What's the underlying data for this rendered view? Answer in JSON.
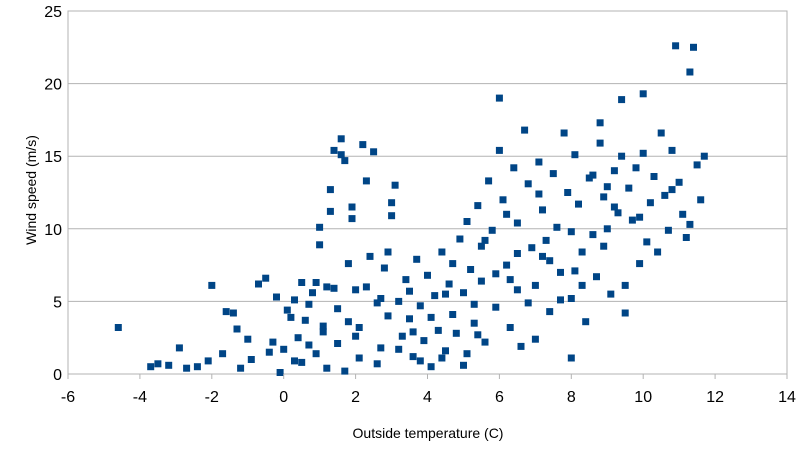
{
  "chart_data": {
    "type": "scatter",
    "xlabel": "Outside temperature (C)",
    "ylabel": "Wind speed (m/s)",
    "xlim": [
      -6,
      14
    ],
    "ylim": [
      0,
      25
    ],
    "x_ticks": [
      -6,
      -4,
      -2,
      0,
      2,
      4,
      6,
      8,
      10,
      12,
      14
    ],
    "y_ticks": [
      0,
      5,
      10,
      15,
      20,
      25
    ],
    "grid": "horizontal",
    "legend": "none",
    "marker_color": "#004586",
    "marker": "square",
    "series": [
      {
        "points": [
          [
            -4.6,
            3.2
          ],
          [
            -3.7,
            0.5
          ],
          [
            -3.5,
            0.7
          ],
          [
            -3.2,
            0.6
          ],
          [
            -2.9,
            1.8
          ],
          [
            -2.7,
            0.4
          ],
          [
            -2.4,
            0.5
          ],
          [
            -2.1,
            0.9
          ],
          [
            -2.0,
            6.1
          ],
          [
            -1.7,
            1.4
          ],
          [
            -1.6,
            4.3
          ],
          [
            -1.4,
            4.2
          ],
          [
            -1.3,
            3.1
          ],
          [
            -1.2,
            0.4
          ],
          [
            -1.0,
            2.4
          ],
          [
            -0.9,
            1.0
          ],
          [
            -0.7,
            6.2
          ],
          [
            -0.5,
            6.6
          ],
          [
            -0.4,
            1.5
          ],
          [
            -0.3,
            2.2
          ],
          [
            -0.2,
            5.3
          ],
          [
            -0.1,
            0.1
          ],
          [
            0.0,
            1.7
          ],
          [
            0.1,
            4.4
          ],
          [
            0.2,
            3.9
          ],
          [
            0.3,
            5.1
          ],
          [
            0.4,
            2.5
          ],
          [
            0.5,
            6.3
          ],
          [
            0.5,
            0.8
          ],
          [
            0.6,
            3.7
          ],
          [
            0.7,
            2.0
          ],
          [
            0.8,
            5.6
          ],
          [
            0.9,
            1.4
          ],
          [
            1.0,
            10.1
          ],
          [
            1.0,
            8.9
          ],
          [
            1.1,
            3.3
          ],
          [
            1.2,
            6.0
          ],
          [
            1.2,
            0.4
          ],
          [
            1.3,
            12.7
          ],
          [
            1.3,
            11.2
          ],
          [
            1.4,
            15.4
          ],
          [
            1.5,
            4.5
          ],
          [
            1.5,
            2.1
          ],
          [
            1.6,
            16.2
          ],
          [
            1.6,
            15.1
          ],
          [
            1.7,
            14.7
          ],
          [
            1.8,
            7.6
          ],
          [
            1.9,
            11.5
          ],
          [
            1.9,
            10.7
          ],
          [
            2.0,
            5.8
          ],
          [
            2.1,
            3.2
          ],
          [
            2.1,
            1.1
          ],
          [
            2.2,
            15.8
          ],
          [
            2.3,
            13.3
          ],
          [
            2.4,
            8.1
          ],
          [
            2.5,
            15.3
          ],
          [
            2.6,
            4.9
          ],
          [
            2.7,
            1.8
          ],
          [
            2.8,
            7.3
          ],
          [
            2.9,
            8.4
          ],
          [
            3.0,
            11.8
          ],
          [
            3.0,
            10.9
          ],
          [
            3.1,
            13.0
          ],
          [
            3.2,
            5.0
          ],
          [
            3.3,
            2.6
          ],
          [
            3.4,
            6.5
          ],
          [
            3.5,
            3.8
          ],
          [
            3.6,
            1.2
          ],
          [
            3.7,
            7.9
          ],
          [
            3.8,
            4.7
          ],
          [
            3.9,
            2.3
          ],
          [
            4.0,
            6.8
          ],
          [
            4.1,
            0.5
          ],
          [
            4.2,
            5.4
          ],
          [
            4.3,
            3.0
          ],
          [
            4.4,
            8.4
          ],
          [
            4.5,
            1.6
          ],
          [
            4.6,
            6.2
          ],
          [
            4.7,
            4.1
          ],
          [
            4.8,
            2.8
          ],
          [
            4.9,
            9.3
          ],
          [
            5.0,
            5.6
          ],
          [
            5.1,
            10.5
          ],
          [
            5.1,
            1.4
          ],
          [
            5.2,
            7.2
          ],
          [
            5.3,
            3.5
          ],
          [
            5.4,
            11.6
          ],
          [
            5.5,
            8.8
          ],
          [
            5.5,
            6.4
          ],
          [
            5.6,
            2.2
          ],
          [
            5.7,
            13.3
          ],
          [
            5.8,
            9.9
          ],
          [
            5.9,
            4.6
          ],
          [
            6.0,
            19.0
          ],
          [
            6.0,
            15.4
          ],
          [
            6.1,
            12.0
          ],
          [
            6.2,
            7.5
          ],
          [
            6.3,
            3.2
          ],
          [
            6.4,
            14.2
          ],
          [
            6.5,
            10.4
          ],
          [
            6.5,
            5.8
          ],
          [
            6.6,
            1.9
          ],
          [
            6.7,
            16.8
          ],
          [
            6.8,
            13.1
          ],
          [
            6.9,
            8.7
          ],
          [
            7.0,
            6.1
          ],
          [
            7.0,
            2.4
          ],
          [
            7.1,
            14.6
          ],
          [
            7.2,
            11.3
          ],
          [
            7.3,
            9.2
          ],
          [
            7.4,
            4.3
          ],
          [
            7.5,
            13.8
          ],
          [
            7.6,
            10.1
          ],
          [
            7.7,
            7.0
          ],
          [
            7.8,
            16.6
          ],
          [
            7.9,
            12.5
          ],
          [
            8.0,
            5.2
          ],
          [
            8.0,
            1.1
          ],
          [
            8.1,
            15.1
          ],
          [
            8.2,
            11.7
          ],
          [
            8.3,
            8.4
          ],
          [
            8.4,
            3.6
          ],
          [
            8.5,
            13.5
          ],
          [
            8.6,
            9.6
          ],
          [
            8.7,
            6.7
          ],
          [
            8.8,
            17.3
          ],
          [
            8.8,
            15.9
          ],
          [
            8.9,
            12.2
          ],
          [
            9.0,
            10.0
          ],
          [
            9.1,
            5.5
          ],
          [
            9.2,
            14.0
          ],
          [
            9.3,
            11.1
          ],
          [
            9.4,
            18.9
          ],
          [
            9.4,
            15.0
          ],
          [
            9.5,
            6.1
          ],
          [
            9.5,
            4.2
          ],
          [
            9.6,
            12.8
          ],
          [
            9.7,
            10.6
          ],
          [
            9.8,
            14.2
          ],
          [
            9.9,
            7.6
          ],
          [
            10.0,
            19.3
          ],
          [
            10.0,
            15.2
          ],
          [
            10.1,
            9.1
          ],
          [
            10.2,
            11.8
          ],
          [
            10.3,
            13.6
          ],
          [
            10.4,
            8.4
          ],
          [
            10.5,
            16.6
          ],
          [
            10.6,
            12.3
          ],
          [
            10.7,
            9.9
          ],
          [
            10.8,
            15.4
          ],
          [
            10.9,
            22.6
          ],
          [
            11.0,
            13.2
          ],
          [
            11.1,
            11.0
          ],
          [
            11.2,
            9.4
          ],
          [
            11.3,
            20.8
          ],
          [
            11.3,
            10.3
          ],
          [
            11.4,
            22.5
          ],
          [
            11.5,
            14.4
          ],
          [
            11.6,
            12.0
          ],
          [
            11.7,
            15.0
          ],
          [
            0.3,
            0.9
          ],
          [
            0.7,
            4.8
          ],
          [
            1.1,
            2.9
          ],
          [
            1.4,
            5.9
          ],
          [
            1.7,
            0.2
          ],
          [
            2.0,
            2.6
          ],
          [
            2.3,
            6.0
          ],
          [
            2.6,
            0.7
          ],
          [
            2.9,
            4.0
          ],
          [
            3.2,
            1.7
          ],
          [
            3.5,
            5.7
          ],
          [
            3.8,
            0.9
          ],
          [
            4.1,
            3.9
          ],
          [
            4.4,
            1.1
          ],
          [
            4.7,
            7.6
          ],
          [
            5.0,
            0.6
          ],
          [
            5.3,
            4.8
          ],
          [
            5.6,
            9.2
          ],
          [
            5.9,
            6.9
          ],
          [
            6.2,
            11.0
          ],
          [
            6.5,
            8.3
          ],
          [
            6.8,
            4.9
          ],
          [
            7.1,
            12.4
          ],
          [
            7.4,
            7.8
          ],
          [
            7.7,
            5.1
          ],
          [
            8.0,
            9.8
          ],
          [
            8.3,
            6.1
          ],
          [
            8.6,
            13.7
          ],
          [
            8.9,
            8.8
          ],
          [
            9.2,
            11.5
          ],
          [
            0.9,
            6.3
          ],
          [
            1.8,
            3.6
          ],
          [
            2.7,
            5.2
          ],
          [
            3.6,
            2.9
          ],
          [
            4.5,
            5.5
          ],
          [
            5.4,
            2.7
          ],
          [
            6.3,
            6.5
          ],
          [
            7.2,
            8.1
          ],
          [
            8.1,
            7.1
          ],
          [
            9.0,
            12.9
          ],
          [
            9.9,
            10.8
          ],
          [
            10.8,
            12.7
          ]
        ]
      }
    ]
  }
}
